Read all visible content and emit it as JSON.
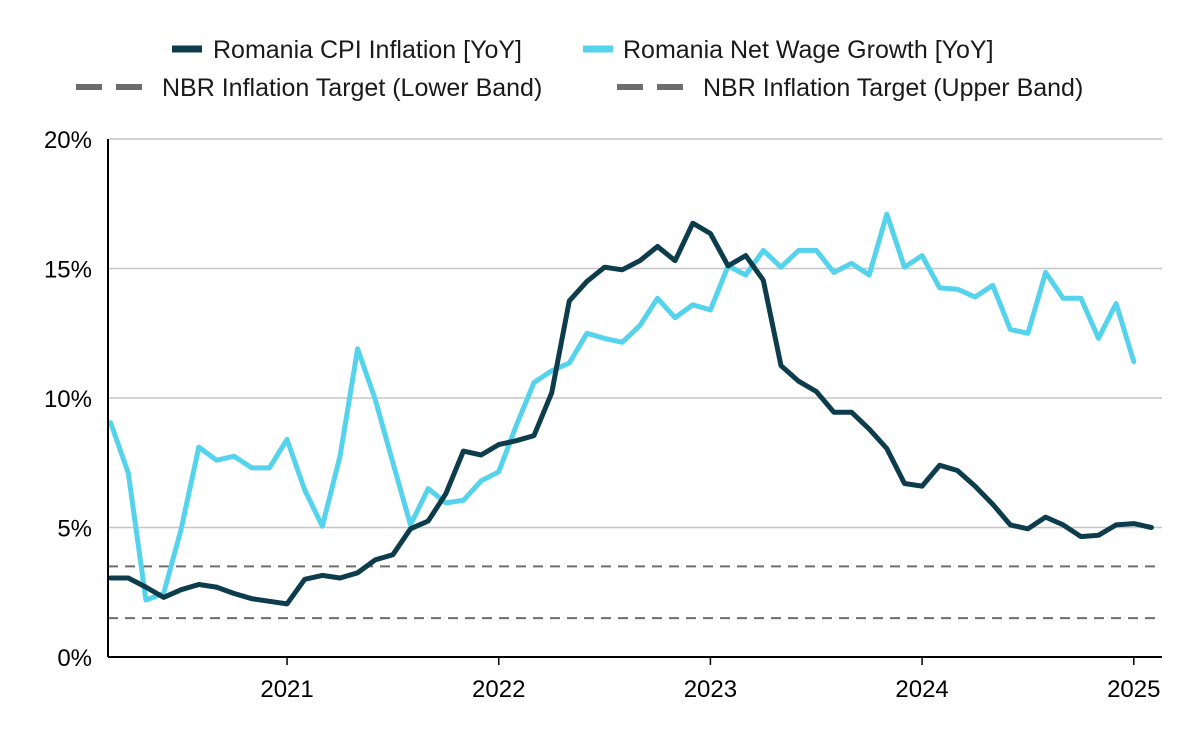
{
  "chart_data": {
    "type": "line",
    "title": "",
    "xlabel": "",
    "ylabel": "",
    "ylim": [
      0,
      20
    ],
    "y_ticks": [
      "0%",
      "5%",
      "10%",
      "15%",
      "20%"
    ],
    "y_tick_values": [
      0,
      5,
      10,
      15,
      20
    ],
    "x_ticks": [
      "2021",
      "2022",
      "2023",
      "2024",
      "2025"
    ],
    "x_tick_values": [
      "2021-01",
      "2022-01",
      "2023-01",
      "2024-01",
      "2025-01"
    ],
    "xlim": [
      "2020-03",
      "2025-02"
    ],
    "grid": "horizontal",
    "legend_position": "top",
    "series": [
      {
        "name": "Romania CPI Inflation [YoY]",
        "color": "#0d3d4c",
        "style": "solid",
        "x": [
          "2020-03",
          "2020-04",
          "2020-05",
          "2020-06",
          "2020-07",
          "2020-08",
          "2020-09",
          "2020-10",
          "2020-11",
          "2020-12",
          "2021-01",
          "2021-02",
          "2021-03",
          "2021-04",
          "2021-05",
          "2021-06",
          "2021-07",
          "2021-08",
          "2021-09",
          "2021-10",
          "2021-11",
          "2021-12",
          "2022-01",
          "2022-02",
          "2022-03",
          "2022-04",
          "2022-05",
          "2022-06",
          "2022-07",
          "2022-08",
          "2022-09",
          "2022-10",
          "2022-11",
          "2022-12",
          "2023-01",
          "2023-02",
          "2023-03",
          "2023-04",
          "2023-05",
          "2023-06",
          "2023-07",
          "2023-08",
          "2023-09",
          "2023-10",
          "2023-11",
          "2023-12",
          "2024-01",
          "2024-02",
          "2024-03",
          "2024-04",
          "2024-05",
          "2024-06",
          "2024-07",
          "2024-08",
          "2024-09",
          "2024-10",
          "2024-11",
          "2024-12",
          "2025-01",
          "2025-02"
        ],
        "values": [
          3.05,
          3.05,
          2.7,
          2.3,
          2.6,
          2.8,
          2.7,
          2.45,
          2.25,
          2.15,
          2.05,
          3.0,
          3.15,
          3.05,
          3.25,
          3.75,
          3.95,
          4.95,
          5.25,
          6.3,
          7.95,
          7.8,
          8.2,
          8.35,
          8.55,
          10.2,
          13.75,
          14.5,
          15.05,
          14.95,
          15.3,
          15.85,
          15.3,
          16.75,
          16.35,
          15.1,
          15.5,
          14.55,
          11.25,
          10.65,
          10.25,
          9.45,
          9.45,
          8.8,
          8.05,
          6.7,
          6.6,
          7.4,
          7.2,
          6.6,
          5.9,
          5.1,
          4.95,
          5.4,
          5.1,
          4.65,
          4.7,
          5.1,
          5.15,
          5.0
        ]
      },
      {
        "name": "Romania Net Wage Growth [YoY]",
        "color": "#55d3ec",
        "style": "solid",
        "x": [
          "2020-03",
          "2020-04",
          "2020-05",
          "2020-06",
          "2020-07",
          "2020-08",
          "2020-09",
          "2020-10",
          "2020-11",
          "2020-12",
          "2021-01",
          "2021-02",
          "2021-03",
          "2021-04",
          "2021-05",
          "2021-06",
          "2021-07",
          "2021-08",
          "2021-09",
          "2021-10",
          "2021-11",
          "2021-12",
          "2022-01",
          "2022-02",
          "2022-03",
          "2022-04",
          "2022-05",
          "2022-06",
          "2022-07",
          "2022-08",
          "2022-09",
          "2022-10",
          "2022-11",
          "2022-12",
          "2023-01",
          "2023-02",
          "2023-03",
          "2023-04",
          "2023-05",
          "2023-06",
          "2023-07",
          "2023-08",
          "2023-09",
          "2023-10",
          "2023-11",
          "2023-12",
          "2024-01",
          "2024-02",
          "2024-03",
          "2024-04",
          "2024-05",
          "2024-06",
          "2024-07",
          "2024-08",
          "2024-09",
          "2024-10",
          "2024-11",
          "2024-12",
          "2025-01"
        ],
        "values": [
          9.05,
          7.1,
          2.2,
          2.45,
          4.95,
          8.1,
          7.6,
          7.75,
          7.3,
          7.3,
          8.4,
          6.45,
          5.05,
          7.75,
          11.9,
          9.95,
          7.5,
          5.1,
          6.5,
          5.95,
          6.05,
          6.8,
          7.15,
          8.95,
          10.6,
          11.05,
          11.35,
          12.5,
          12.3,
          12.15,
          12.8,
          13.85,
          13.1,
          13.6,
          13.4,
          15.1,
          14.75,
          15.7,
          15.05,
          15.7,
          15.7,
          14.85,
          15.2,
          14.75,
          17.1,
          15.05,
          15.5,
          14.25,
          14.2,
          13.9,
          14.35,
          12.65,
          12.5,
          14.85,
          13.85,
          13.85,
          12.3,
          13.65,
          11.4
        ]
      },
      {
        "name": "NBR Inflation Target (Lower Band)",
        "color": "#6d6d6d",
        "style": "dashed",
        "constant": 1.5
      },
      {
        "name": "NBR Inflation Target (Upper Band)",
        "color": "#6d6d6d",
        "style": "dashed",
        "constant": 3.5
      }
    ]
  }
}
